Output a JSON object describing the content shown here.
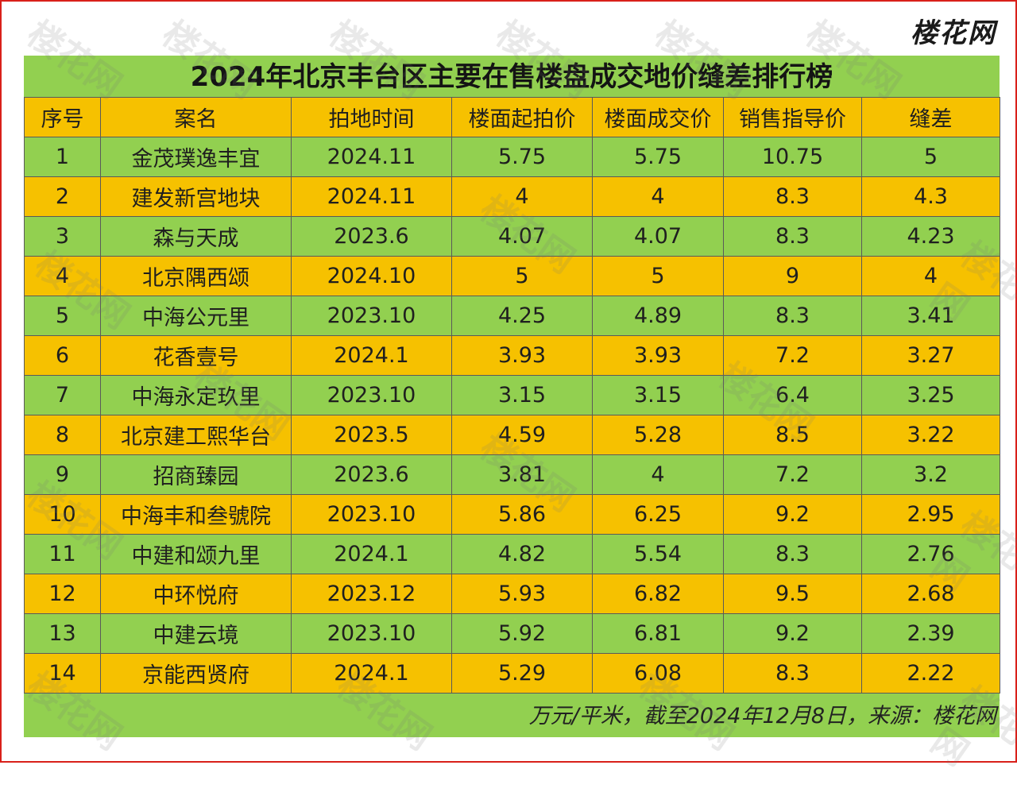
{
  "logo": "楼花网",
  "watermark": "楼花网",
  "title": "2024年北京丰台区主要在售楼盘成交地价缝差排行榜",
  "columns": [
    "序号",
    "案名",
    "拍地时间",
    "楼面起拍价",
    "楼面成交价",
    "销售指导价",
    "缝差"
  ],
  "rows": [
    [
      "1",
      "金茂璞逸丰宜",
      "2024.11",
      "5.75",
      "5.75",
      "10.75",
      "5"
    ],
    [
      "2",
      "建发新宫地块",
      "2024.11",
      "4",
      "4",
      "8.3",
      "4.3"
    ],
    [
      "3",
      "森与天成",
      "2023.6",
      "4.07",
      "4.07",
      "8.3",
      "4.23"
    ],
    [
      "4",
      "北京隅西颂",
      "2024.10",
      "5",
      "5",
      "9",
      "4"
    ],
    [
      "5",
      "中海公元里",
      "2023.10",
      "4.25",
      "4.89",
      "8.3",
      "3.41"
    ],
    [
      "6",
      "花香壹号",
      "2024.1",
      "3.93",
      "3.93",
      "7.2",
      "3.27"
    ],
    [
      "7",
      "中海永定玖里",
      "2023.10",
      "3.15",
      "3.15",
      "6.4",
      "3.25"
    ],
    [
      "8",
      "北京建工熙华台",
      "2023.5",
      "4.59",
      "5.28",
      "8.5",
      "3.22"
    ],
    [
      "9",
      "招商臻园",
      "2023.6",
      "3.81",
      "4",
      "7.2",
      "3.2"
    ],
    [
      "10",
      "中海丰和叁號院",
      "2023.10",
      "5.86",
      "6.25",
      "9.2",
      "2.95"
    ],
    [
      "11",
      "中建和颂九里",
      "2024.1",
      "4.82",
      "5.54",
      "8.3",
      "2.76"
    ],
    [
      "12",
      "中环悦府",
      "2023.12",
      "5.93",
      "6.82",
      "9.5",
      "2.68"
    ],
    [
      "13",
      "中建云境",
      "2023.10",
      "5.92",
      "6.81",
      "9.2",
      "2.39"
    ],
    [
      "14",
      "京能西贤府",
      "2024.1",
      "5.29",
      "6.08",
      "8.3",
      "2.22"
    ]
  ],
  "footer": "万元/平米，截至2024年12月8日，来源：楼花网",
  "colors": {
    "green": "#92d050",
    "orange": "#f6c100",
    "border": "#d9201a"
  }
}
